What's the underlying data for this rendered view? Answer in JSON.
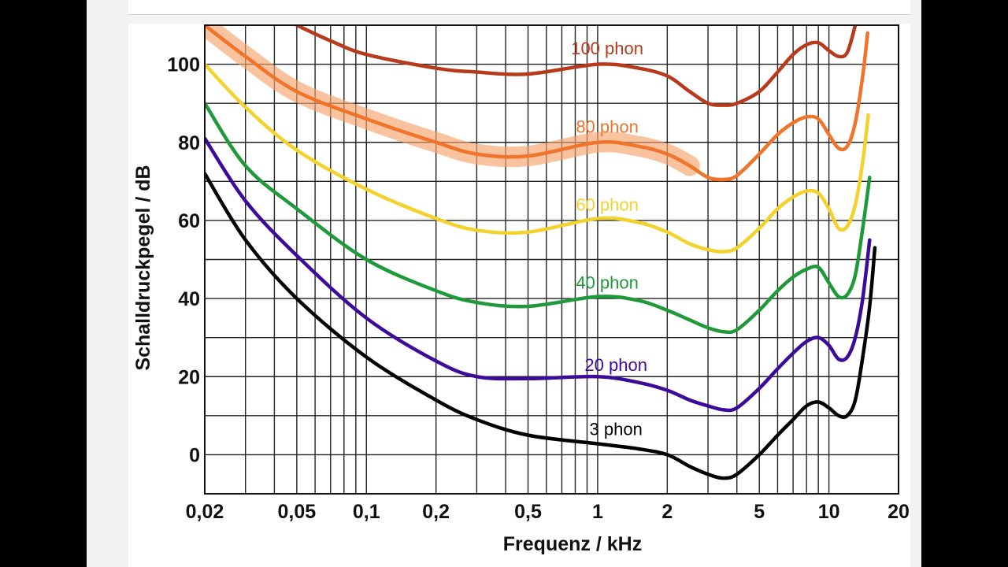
{
  "chart_data": {
    "type": "line",
    "title": "",
    "xlabel": "Frequenz  /  kHz",
    "ylabel": "Schalldruckpegel  /  dB",
    "xscale": "log",
    "xlim": [
      0.02,
      20
    ],
    "ylim": [
      -10,
      110
    ],
    "grid": true,
    "x_ticks": [
      {
        "value": 0.02,
        "label": "0,02"
      },
      {
        "value": 0.05,
        "label": "0,05"
      },
      {
        "value": 0.1,
        "label": "0,1"
      },
      {
        "value": 0.2,
        "label": "0,2"
      },
      {
        "value": 0.5,
        "label": "0,5"
      },
      {
        "value": 1,
        "label": "1"
      },
      {
        "value": 2,
        "label": "2"
      },
      {
        "value": 5,
        "label": "5"
      },
      {
        "value": 10,
        "label": "10"
      },
      {
        "value": 20,
        "label": "20"
      }
    ],
    "y_ticks": [
      {
        "value": 0,
        "label": "0"
      },
      {
        "value": 20,
        "label": "20"
      },
      {
        "value": 40,
        "label": "40"
      },
      {
        "value": 60,
        "label": "60"
      },
      {
        "value": 80,
        "label": "80"
      },
      {
        "value": 100,
        "label": "100"
      }
    ],
    "series": [
      {
        "name": "3 phon",
        "color": "#000000",
        "label_at": {
          "x": 1.2,
          "y": 5
        },
        "points": [
          [
            0.02,
            72
          ],
          [
            0.03,
            55
          ],
          [
            0.05,
            40
          ],
          [
            0.1,
            25
          ],
          [
            0.2,
            14
          ],
          [
            0.3,
            9
          ],
          [
            0.5,
            5
          ],
          [
            1,
            2.8
          ],
          [
            1.5,
            1.5
          ],
          [
            2,
            0
          ],
          [
            2.5,
            -3
          ],
          [
            3,
            -5
          ],
          [
            3.5,
            -6
          ],
          [
            4,
            -5
          ],
          [
            5,
            0
          ],
          [
            6,
            5
          ],
          [
            7,
            9
          ],
          [
            8,
            12.5
          ],
          [
            9,
            13.5
          ],
          [
            10,
            12
          ],
          [
            11,
            10
          ],
          [
            12,
            10
          ],
          [
            13,
            14
          ],
          [
            14,
            25
          ],
          [
            15,
            38
          ],
          [
            15.8,
            53
          ]
        ]
      },
      {
        "name": "20 phon",
        "color": "#3d0b9a",
        "label_at": {
          "x": 1.2,
          "y": 21.5
        },
        "points": [
          [
            0.02,
            81
          ],
          [
            0.03,
            65
          ],
          [
            0.05,
            51
          ],
          [
            0.1,
            35
          ],
          [
            0.2,
            24
          ],
          [
            0.3,
            20
          ],
          [
            0.5,
            19.5
          ],
          [
            1,
            20
          ],
          [
            1.5,
            18.5
          ],
          [
            2,
            16.5
          ],
          [
            2.5,
            14
          ],
          [
            3,
            12.5
          ],
          [
            3.5,
            11.5
          ],
          [
            4,
            12
          ],
          [
            5,
            17
          ],
          [
            6,
            22
          ],
          [
            7,
            26
          ],
          [
            8,
            29
          ],
          [
            9,
            30
          ],
          [
            10,
            28
          ],
          [
            11,
            24.5
          ],
          [
            12,
            25
          ],
          [
            13,
            30
          ],
          [
            14,
            40
          ],
          [
            15,
            55
          ]
        ]
      },
      {
        "name": "40 phon",
        "color": "#1f9a3a",
        "label_at": {
          "x": 1.1,
          "y": 42.5
        },
        "points": [
          [
            0.02,
            90
          ],
          [
            0.03,
            74
          ],
          [
            0.05,
            63
          ],
          [
            0.1,
            50
          ],
          [
            0.2,
            42
          ],
          [
            0.3,
            39
          ],
          [
            0.5,
            38
          ],
          [
            1,
            40.5
          ],
          [
            1.5,
            39.5
          ],
          [
            2,
            37
          ],
          [
            2.5,
            34.5
          ],
          [
            3,
            32.5
          ],
          [
            3.5,
            31.5
          ],
          [
            4,
            32
          ],
          [
            5,
            37
          ],
          [
            6,
            42
          ],
          [
            7,
            45.5
          ],
          [
            8,
            47.5
          ],
          [
            9,
            48
          ],
          [
            10,
            44
          ],
          [
            11,
            40.5
          ],
          [
            12,
            41
          ],
          [
            13,
            46
          ],
          [
            14,
            58
          ],
          [
            15,
            71
          ]
        ]
      },
      {
        "name": "60 phon",
        "color": "#f3d22d",
        "label_at": {
          "x": 1.1,
          "y": 62.5
        },
        "points": [
          [
            0.02,
            100
          ],
          [
            0.03,
            89
          ],
          [
            0.05,
            78
          ],
          [
            0.1,
            68
          ],
          [
            0.2,
            60.5
          ],
          [
            0.3,
            57.5
          ],
          [
            0.5,
            57
          ],
          [
            1,
            60.5
          ],
          [
            1.5,
            59.5
          ],
          [
            2,
            57
          ],
          [
            2.5,
            54
          ],
          [
            3,
            52.5
          ],
          [
            3.5,
            52
          ],
          [
            4,
            53
          ],
          [
            5,
            58
          ],
          [
            6,
            63
          ],
          [
            7,
            66
          ],
          [
            8,
            67.5
          ],
          [
            9,
            67
          ],
          [
            10,
            63
          ],
          [
            11,
            58
          ],
          [
            12,
            58.5
          ],
          [
            13,
            64
          ],
          [
            14,
            75
          ],
          [
            14.8,
            87
          ]
        ]
      },
      {
        "name": "80 phon",
        "color": "#f0742a",
        "label_at": {
          "x": 1.1,
          "y": 82.5
        },
        "points": [
          [
            0.02,
            110
          ],
          [
            0.03,
            102
          ],
          [
            0.05,
            93
          ],
          [
            0.1,
            86
          ],
          [
            0.2,
            80
          ],
          [
            0.3,
            77
          ],
          [
            0.5,
            76.5
          ],
          [
            1,
            80
          ],
          [
            1.5,
            79
          ],
          [
            2,
            77
          ],
          [
            2.5,
            74
          ],
          [
            3,
            71
          ],
          [
            3.5,
            70.5
          ],
          [
            4,
            71.5
          ],
          [
            5,
            77
          ],
          [
            6,
            82
          ],
          [
            7,
            85
          ],
          [
            8,
            86.5
          ],
          [
            9,
            86
          ],
          [
            10,
            82
          ],
          [
            11,
            78.5
          ],
          [
            12,
            79
          ],
          [
            13,
            85
          ],
          [
            14,
            97
          ],
          [
            14.7,
            108
          ]
        ]
      },
      {
        "name": "100 phon",
        "color": "#b83a1d",
        "label_at": {
          "x": 1.1,
          "y": 102.5
        },
        "points": [
          [
            0.05,
            110
          ],
          [
            0.07,
            106
          ],
          [
            0.1,
            102.5
          ],
          [
            0.2,
            99
          ],
          [
            0.3,
            98
          ],
          [
            0.5,
            97.5
          ],
          [
            1,
            100
          ],
          [
            1.5,
            99
          ],
          [
            2,
            97
          ],
          [
            2.5,
            93
          ],
          [
            3,
            90
          ],
          [
            3.5,
            89.5
          ],
          [
            4,
            90
          ],
          [
            5,
            93
          ],
          [
            6,
            98
          ],
          [
            7,
            102.5
          ],
          [
            8,
            105
          ],
          [
            9,
            105.5
          ],
          [
            10,
            103.5
          ],
          [
            11,
            102
          ],
          [
            12,
            103
          ],
          [
            13,
            110
          ]
        ]
      }
    ],
    "highlight": {
      "series": "80 phon",
      "x_range": [
        0.02,
        2.5
      ],
      "color": "#f5a36a"
    }
  }
}
